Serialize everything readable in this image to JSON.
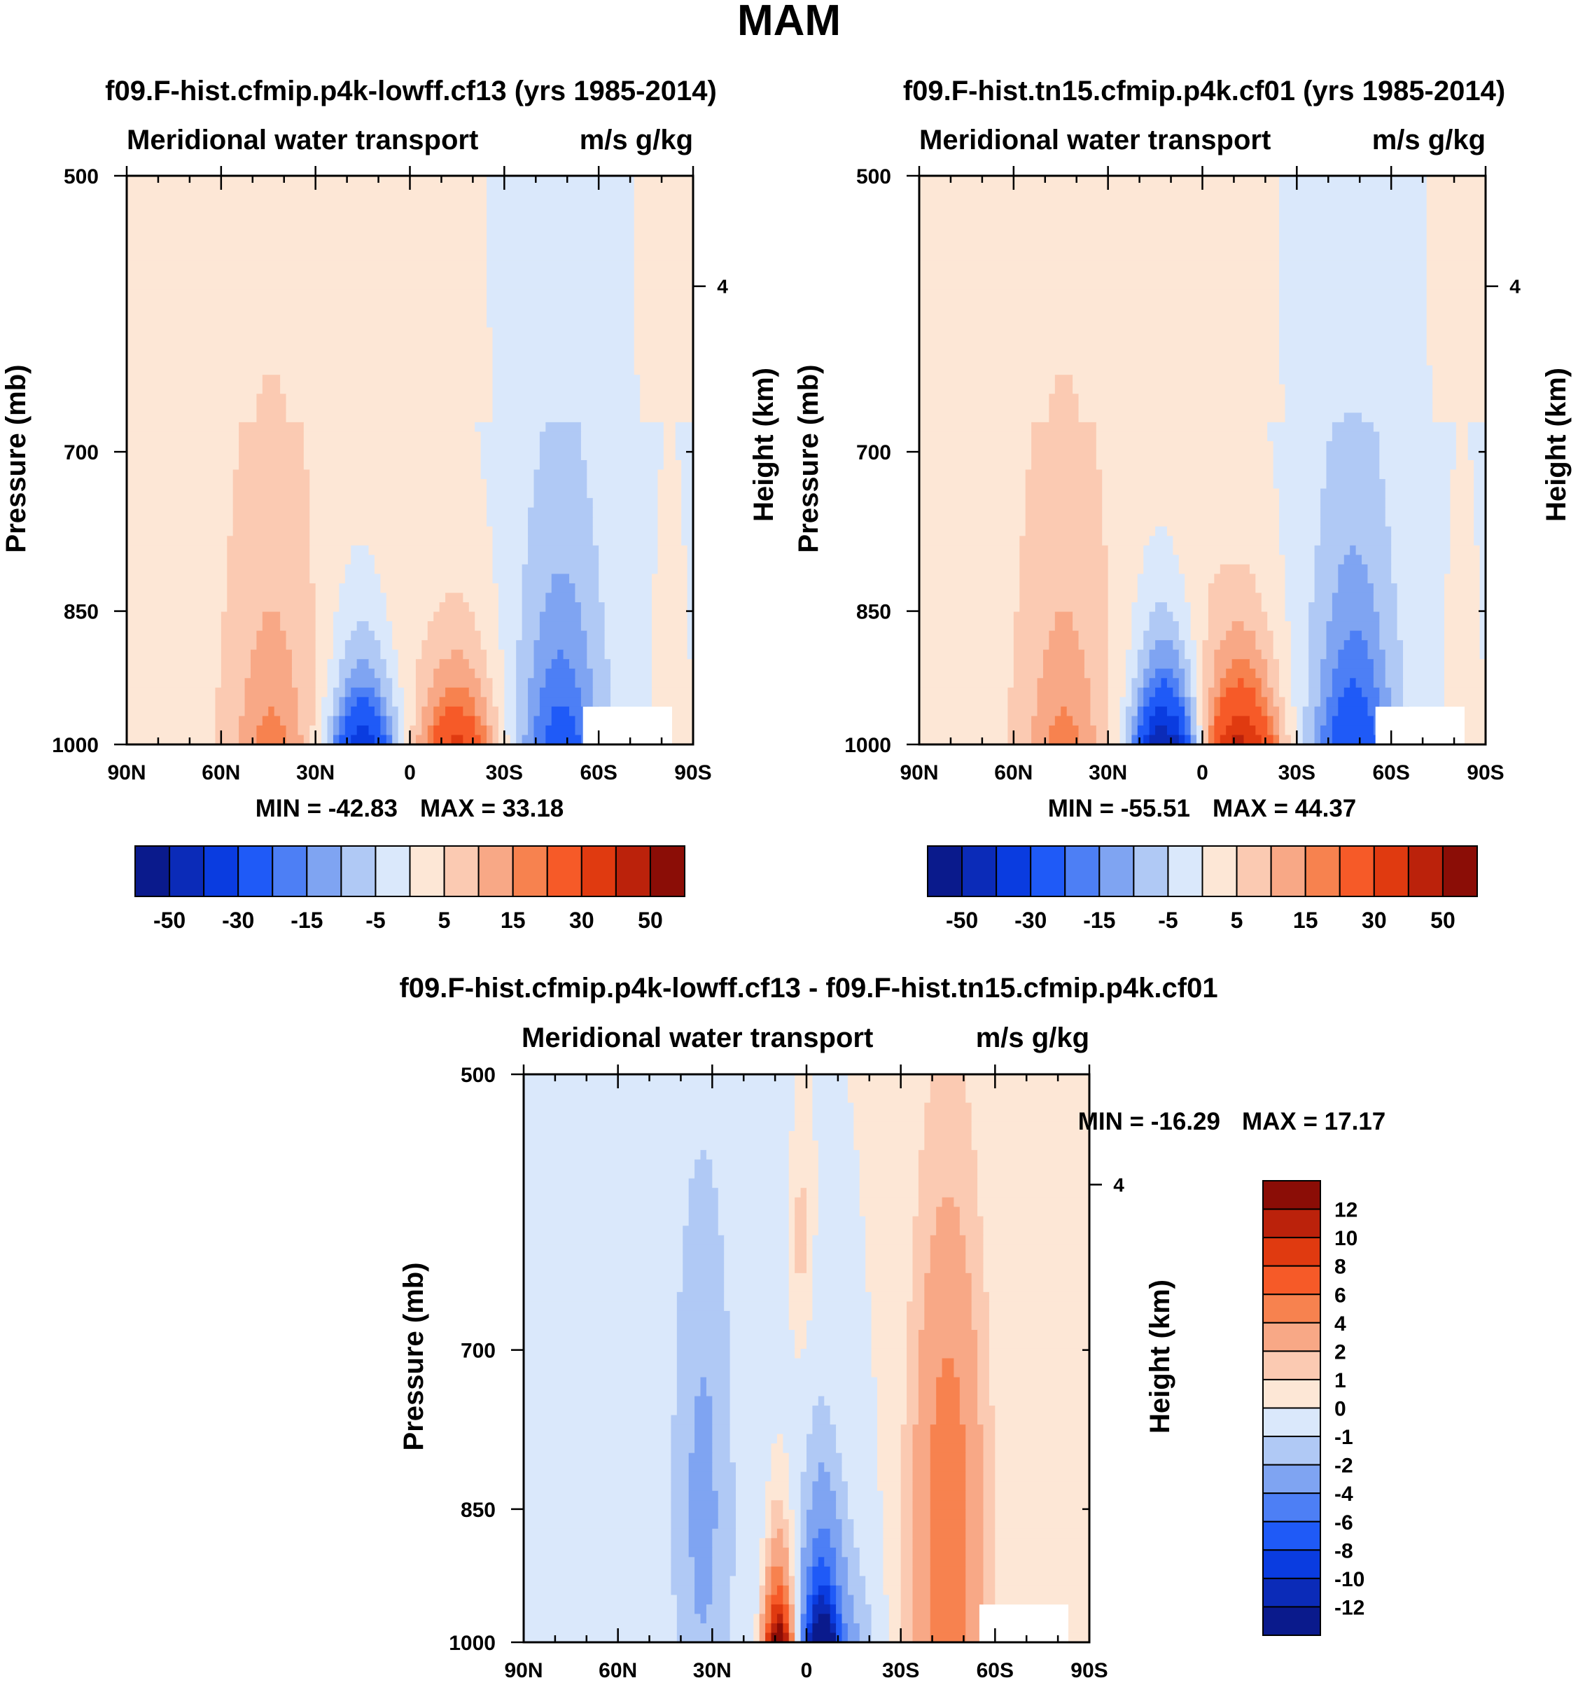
{
  "figure_title": "MAM",
  "chart_data": [
    {
      "type": "heatmap",
      "title": "f09.F-hist.cfmip.p4k-lowff.cf13 (yrs 1985-2014)",
      "left_string": "Meridional water transport",
      "right_string": "m/s g/kg",
      "ylabel": "Pressure (mb)",
      "ylabel_right": "Height (km)",
      "x_ticks": [
        "90N",
        "60N",
        "30N",
        "0",
        "30S",
        "60S",
        "90S"
      ],
      "y_ticks": [
        "500",
        "700",
        "850",
        "1000"
      ],
      "y_ticks_right": [
        "4"
      ],
      "ylim": [
        1000,
        500
      ],
      "min_label": "MIN = -42.83",
      "max_label": "MAX =  33.18",
      "min": -42.83,
      "max": 33.18,
      "colorbar_orientation": "horizontal",
      "colorbar_levels": [
        -60,
        -50,
        -40,
        -30,
        -20,
        -15,
        -10,
        -5,
        0,
        5,
        10,
        15,
        20,
        30,
        40,
        50,
        60
      ],
      "colorbar_labels": [
        "-50",
        "-30",
        "-15",
        "-5",
        "5",
        "15",
        "30",
        "50"
      ],
      "features": [
        {
          "sign": "negative",
          "lat": "15N",
          "peak": -42.83,
          "top_hPa": 880
        },
        {
          "sign": "positive",
          "lat": "15S",
          "peak": 33.18,
          "top_hPa": 890
        },
        {
          "sign": "negative",
          "lat": "50S",
          "peak": -20,
          "top_hPa": 690
        },
        {
          "sign": "positive",
          "lat": "45N",
          "peak": 10,
          "top_hPa": 700
        }
      ]
    },
    {
      "type": "heatmap",
      "title": "f09.F-hist.tn15.cfmip.p4k.cf01 (yrs 1985-2014)",
      "left_string": "Meridional water transport",
      "right_string": "m/s g/kg",
      "ylabel": "Pressure (mb)",
      "ylabel_right": "Height (km)",
      "x_ticks": [
        "90N",
        "60N",
        "30N",
        "0",
        "30S",
        "60S",
        "90S"
      ],
      "y_ticks": [
        "500",
        "700",
        "850",
        "1000"
      ],
      "y_ticks_right": [
        "4"
      ],
      "ylim": [
        1000,
        500
      ],
      "min_label": "MIN = -55.51",
      "max_label": "MAX =  44.37",
      "min": -55.51,
      "max": 44.37,
      "colorbar_orientation": "horizontal",
      "colorbar_levels": [
        -60,
        -50,
        -40,
        -30,
        -20,
        -15,
        -10,
        -5,
        0,
        5,
        10,
        15,
        20,
        30,
        40,
        50,
        60
      ],
      "colorbar_labels": [
        "-50",
        "-30",
        "-15",
        "-5",
        "5",
        "15",
        "30",
        "50"
      ],
      "features": [
        {
          "sign": "negative",
          "lat": "12N",
          "peak": -55.51,
          "top_hPa": 870
        },
        {
          "sign": "positive",
          "lat": "12S",
          "peak": 44.37,
          "top_hPa": 880
        },
        {
          "sign": "negative",
          "lat": "50S",
          "peak": -25,
          "top_hPa": 660
        },
        {
          "sign": "positive",
          "lat": "45N",
          "peak": 10,
          "top_hPa": 690
        }
      ]
    },
    {
      "type": "heatmap",
      "title": "f09.F-hist.cfmip.p4k-lowff.cf13 - f09.F-hist.tn15.cfmip.p4k.cf01",
      "left_string": "Meridional water transport",
      "right_string": "m/s g/kg",
      "ylabel": "Pressure (mb)",
      "ylabel_right": "Height (km)",
      "x_ticks": [
        "90N",
        "60N",
        "30N",
        "0",
        "30S",
        "60S",
        "90S"
      ],
      "y_ticks": [
        "500",
        "700",
        "850",
        "1000"
      ],
      "y_ticks_right": [
        "4"
      ],
      "ylim": [
        1000,
        500
      ],
      "min_label": "MIN = -16.29",
      "max_label": "MAX =  17.17",
      "min": -16.29,
      "max": 17.17,
      "colorbar_orientation": "vertical",
      "colorbar_levels": [
        -14,
        -12,
        -10,
        -8,
        -6,
        -4,
        -2,
        -1,
        0,
        1,
        2,
        4,
        6,
        8,
        10,
        12,
        14
      ],
      "colorbar_labels": [
        "12",
        "10",
        "8",
        "6",
        "4",
        "2",
        "1",
        "0",
        "-1",
        "-2",
        "-4",
        "-6",
        "-8",
        "-10",
        "-12"
      ],
      "features": [
        {
          "sign": "positive",
          "lat": "10N",
          "peak": 17.17,
          "top_hPa": 880
        },
        {
          "sign": "negative",
          "lat": "5S",
          "peak": -16.29,
          "top_hPa": 860
        },
        {
          "sign": "positive",
          "lat": "45S",
          "peak": 4,
          "top_hPa": 760
        }
      ]
    }
  ],
  "colors": {
    "neg": [
      "#0a1a8c",
      "#0b2bb8",
      "#0a3ce0",
      "#1f5af7",
      "#4d7ff5",
      "#7fa4f2",
      "#b0c9f5",
      "#dae8fb"
    ],
    "pos": [
      "#fde7d6",
      "#fbcab2",
      "#f8a886",
      "#f7824f",
      "#f65a28",
      "#e03a10",
      "#bb220b",
      "#8b0d06"
    ],
    "no_data": "#ffffff"
  }
}
